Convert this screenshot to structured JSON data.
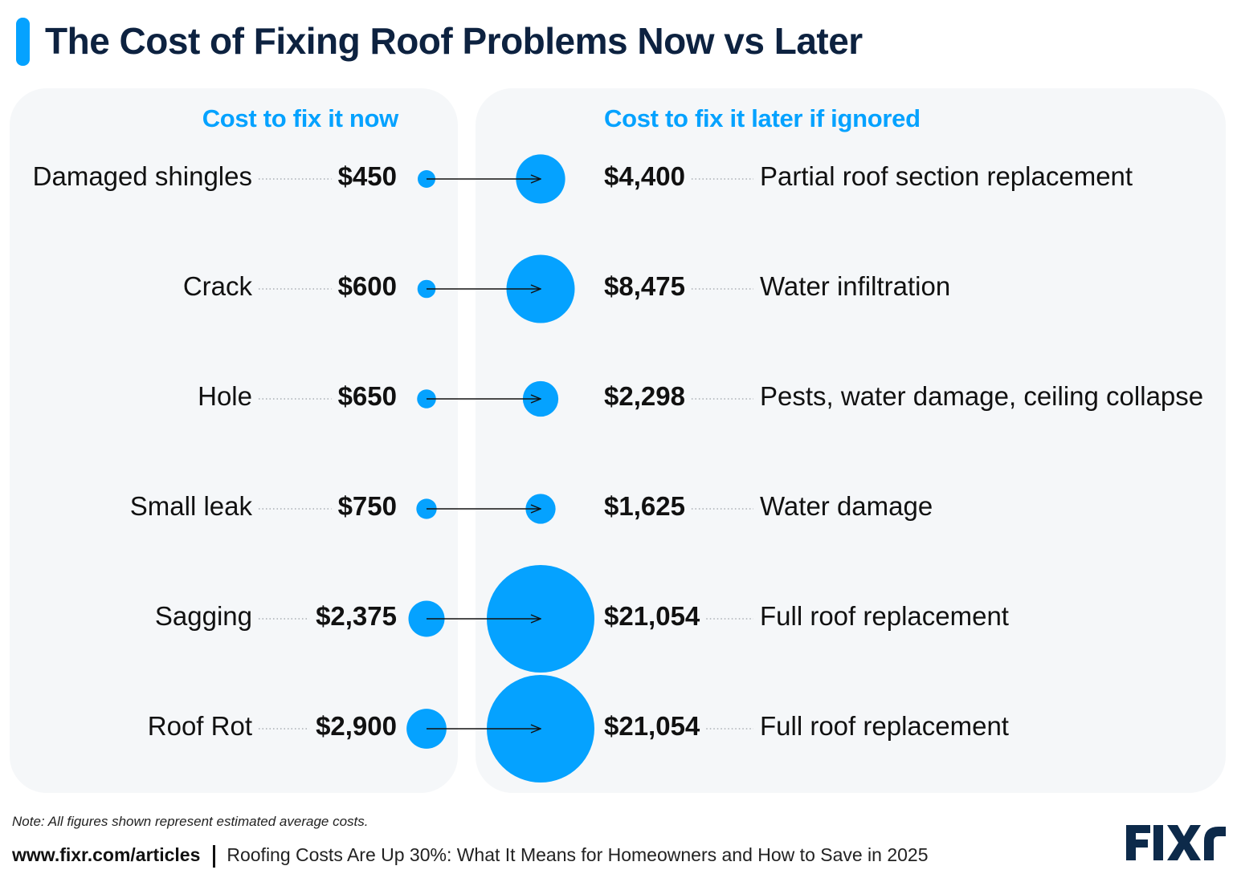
{
  "title": "The Cost of Fixing Roof Problems Now vs Later",
  "columns": {
    "now": "Cost to fix it now",
    "later": "Cost to fix it later if ignored"
  },
  "chart_data": {
    "type": "bubble",
    "title": "The Cost of Fixing Roof Problems Now vs Later",
    "series": [
      {
        "name": "Cost to fix it now",
        "field": "now"
      },
      {
        "name": "Cost to fix it later if ignored",
        "field": "later"
      }
    ],
    "rows": [
      {
        "issue": "Damaged shingles",
        "now": 450,
        "now_label": "$450",
        "later": 4400,
        "later_label": "$4,400",
        "outcome": "Partial roof section replacement"
      },
      {
        "issue": "Crack",
        "now": 600,
        "now_label": "$600",
        "later": 8475,
        "later_label": "$8,475",
        "outcome": "Water infiltration"
      },
      {
        "issue": "Hole",
        "now": 650,
        "now_label": "$650",
        "later": 2298,
        "later_label": "$2,298",
        "outcome": "Pests, water damage, ceiling collapse"
      },
      {
        "issue": "Small leak",
        "now": 750,
        "now_label": "$750",
        "later": 1625,
        "later_label": "$1,625",
        "outcome": "Water damage"
      },
      {
        "issue": "Sagging",
        "now": 2375,
        "now_label": "$2,375",
        "later": 21054,
        "later_label": "$21,054",
        "outcome": "Full roof replacement"
      },
      {
        "issue": "Roof Rot",
        "now": 2900,
        "now_label": "$2,900",
        "later": 21054,
        "later_label": "$21,054",
        "outcome": "Full roof replacement"
      }
    ]
  },
  "note": "Note: All figures shown represent estimated average costs.",
  "footer": {
    "site": "www.fixr.com/articles",
    "article": "Roofing Costs Are Up 30%: What It Means for Homeowners and How to Save in 2025"
  },
  "brand": {
    "logo_text": "FIXR",
    "accent_color": "#05a2ff",
    "title_color": "#0d2240",
    "logo_color": "#0d2a4a"
  }
}
